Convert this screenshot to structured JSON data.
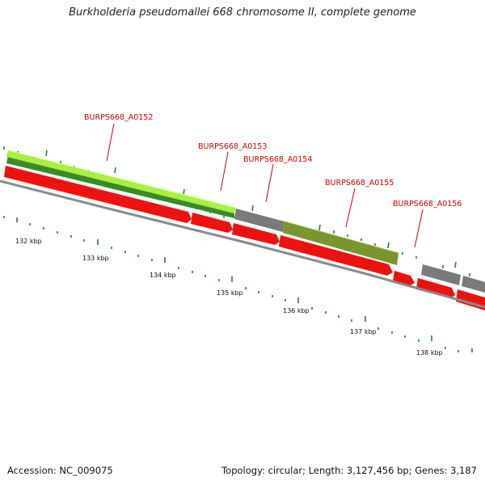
{
  "title": "Burkholderia pseudomallei 668 chromosome II, complete genome",
  "genes": [
    {
      "label": "BURPS668_A0152"
    },
    {
      "label": "BURPS668_A0153"
    },
    {
      "label": "BURPS668_A0154"
    },
    {
      "label": "BURPS668_A0155"
    },
    {
      "label": "BURPS668_A0156"
    }
  ],
  "ticks": [
    {
      "label": "132 kbp"
    },
    {
      "label": "133 kbp"
    },
    {
      "label": "134 kbp"
    },
    {
      "label": "135 kbp"
    },
    {
      "label": "136 kbp"
    },
    {
      "label": "137 kbp"
    },
    {
      "label": "138 kbp"
    }
  ],
  "colors": {
    "title": "#222222",
    "gene_label": "#cc0000",
    "backbone": "#8a8a8a",
    "forward_cds": "#ee1111",
    "highlight_green": "#9ee83a",
    "dark_green": "#3a8a2a",
    "olive": "#7a9430",
    "gray_block": "#7a7a7a",
    "tick_green": "#1e8a1e"
  },
  "footer": {
    "accession": "Accession: NC_009075",
    "summary": "Topology: circular; Length: 3,127,456 bp; Genes: 3,187"
  }
}
